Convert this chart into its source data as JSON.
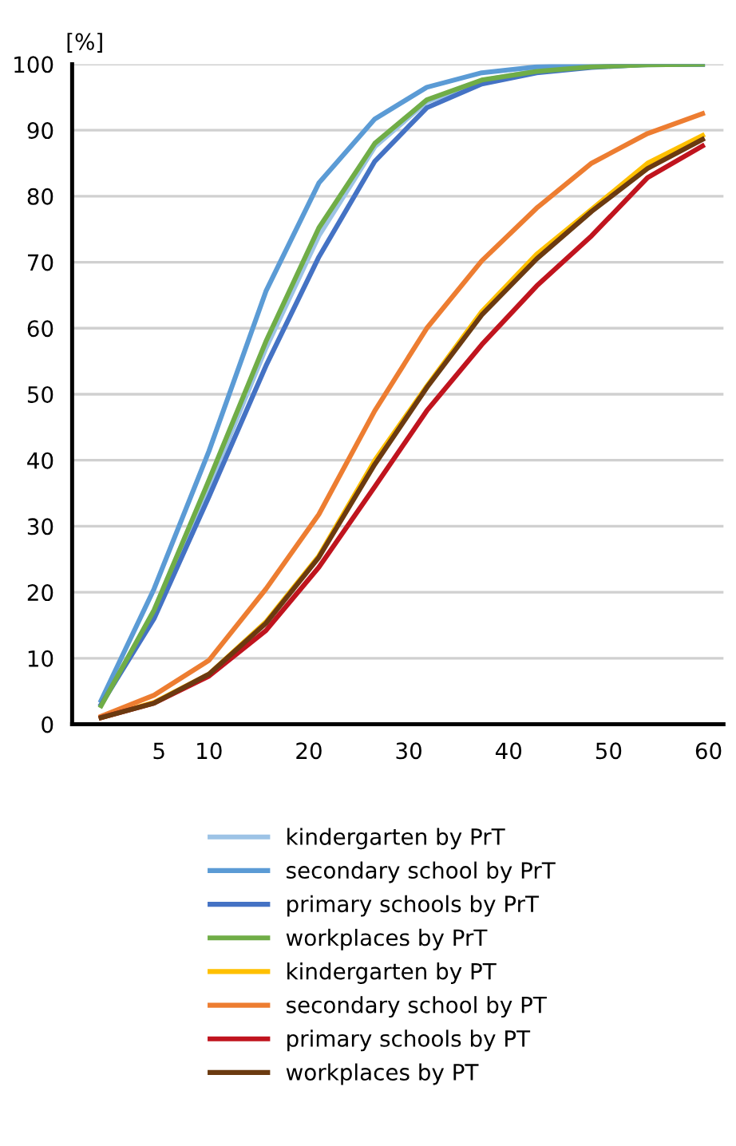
{
  "chart_data": {
    "type": "line",
    "ylabel": "[%]",
    "x": [
      -0.8,
      4.5,
      10,
      15.7,
      21,
      26.6,
      31.8,
      37.3,
      42.8,
      48.3,
      53.9,
      59.4
    ],
    "xlim": [
      -3.7,
      61.5
    ],
    "xticks": [
      5,
      10,
      20,
      30,
      40,
      50,
      60
    ],
    "ylim": [
      0,
      100
    ],
    "yticks": [
      0,
      10,
      20,
      30,
      40,
      50,
      60,
      70,
      80,
      90,
      100
    ],
    "grid": "y",
    "legend": "bottom",
    "marker": "none",
    "line_style": "solid",
    "series": [
      {
        "name": "kindergarten by PrT",
        "color": "#9dc3e6",
        "values": [
          3,
          16.8,
          36,
          57,
          74,
          87.5,
          94.3,
          97.5,
          99,
          99.6,
          99.9,
          100
        ]
      },
      {
        "name": "secondary school by PrT",
        "color": "#5b9bd5",
        "values": [
          3.6,
          20.5,
          41.4,
          65.6,
          82,
          91.7,
          96.5,
          98.7,
          99.6,
          99.9,
          100,
          100
        ]
      },
      {
        "name": "primary schools by PrT",
        "color": "#4472c4",
        "values": [
          3,
          16,
          34.5,
          54.3,
          70.8,
          85.3,
          93.4,
          97,
          98.7,
          99.5,
          100,
          100
        ]
      },
      {
        "name": "workplaces by PrT",
        "color": "#70ad47",
        "values": [
          2.8,
          17.3,
          37,
          58,
          75.2,
          88,
          94.6,
          97.6,
          98.9,
          99.6,
          99.9,
          100
        ]
      },
      {
        "name": "kindergarten by PT",
        "color": "#ffc000",
        "values": [
          1,
          3.3,
          7.6,
          15.5,
          25.5,
          40,
          51.2,
          62.5,
          71.2,
          78,
          85,
          89.2
        ]
      },
      {
        "name": "secondary school by PT",
        "color": "#ed7d31",
        "values": [
          1.2,
          4.4,
          9.7,
          20.5,
          31.8,
          47.5,
          60,
          70.2,
          78.2,
          85,
          89.5,
          92.5
        ]
      },
      {
        "name": "primary schools by PT",
        "color": "#c0141e",
        "values": [
          1,
          3.2,
          7.3,
          14.2,
          23.8,
          36,
          47.5,
          57.5,
          66.4,
          74,
          82.8,
          87.6
        ]
      },
      {
        "name": "workplaces by PT",
        "color": "#6b3a10",
        "values": [
          1,
          3.2,
          7.6,
          15.3,
          25.3,
          39.4,
          51,
          62,
          70.5,
          77.7,
          84.2,
          88.6
        ]
      }
    ]
  }
}
